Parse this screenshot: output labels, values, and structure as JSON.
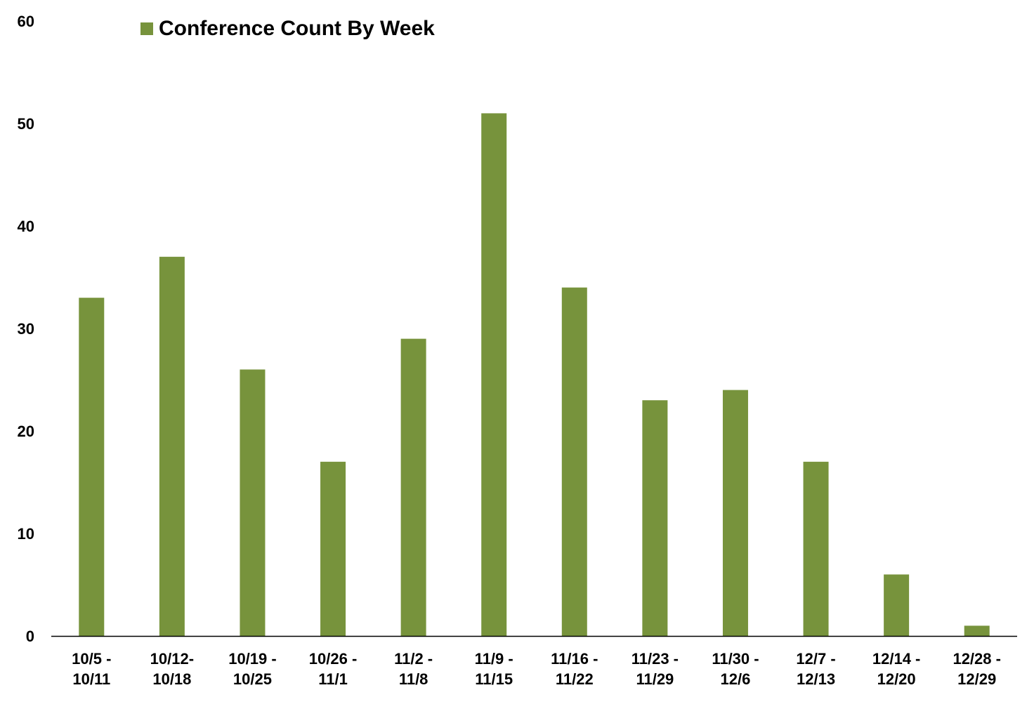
{
  "chart_data": {
    "type": "bar",
    "title": "",
    "xlabel": "",
    "ylabel": "",
    "ylim": [
      0,
      60
    ],
    "yticks": [
      0,
      10,
      20,
      30,
      40,
      50,
      60
    ],
    "grid": false,
    "legend_position": "top-left",
    "bar_color": "#77933c",
    "categories": [
      [
        "10/5 -",
        "10/11"
      ],
      [
        "10/12-",
        "10/18"
      ],
      [
        "10/19 -",
        "10/25"
      ],
      [
        "10/26 -",
        "11/1"
      ],
      [
        "11/2 -",
        "11/8"
      ],
      [
        "11/9 -",
        "11/15"
      ],
      [
        "11/16 -",
        "11/22"
      ],
      [
        "11/23 -",
        "11/29"
      ],
      [
        "11/30 -",
        "12/6"
      ],
      [
        "12/7 -",
        "12/13"
      ],
      [
        "12/14 -",
        "12/20"
      ],
      [
        "12/28 -",
        "12/29"
      ]
    ],
    "series": [
      {
        "name": "Conference Count By Week",
        "values": [
          33,
          37,
          26,
          17,
          29,
          51,
          34,
          23,
          24,
          17,
          6,
          1
        ]
      }
    ]
  }
}
